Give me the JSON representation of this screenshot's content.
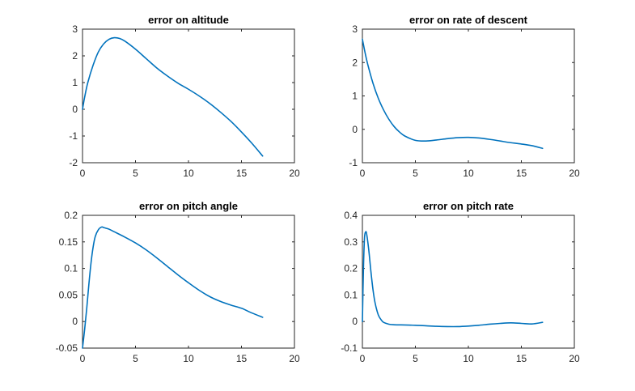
{
  "figure": {
    "background": "#ffffff",
    "line_color": "#0072BD"
  },
  "chart_data": [
    {
      "type": "line",
      "title": "error on altitude",
      "xlabel": "",
      "ylabel": "",
      "xlim": [
        0,
        20
      ],
      "ylim": [
        -2,
        3
      ],
      "xticks": [
        "0",
        "5",
        "10",
        "15",
        "20"
      ],
      "yticks": [
        "-2",
        "-1",
        "0",
        "1",
        "2",
        "3"
      ],
      "grid": true,
      "series": [
        {
          "x": [
            0,
            0.2,
            0.5,
            1,
            1.5,
            2,
            2.5,
            3,
            3.5,
            4,
            5,
            6,
            7,
            8,
            9,
            10,
            11,
            12,
            13,
            14,
            15,
            16,
            17
          ],
          "y": [
            0.0,
            0.45,
            1.0,
            1.65,
            2.15,
            2.45,
            2.62,
            2.68,
            2.65,
            2.55,
            2.25,
            1.9,
            1.55,
            1.25,
            0.98,
            0.75,
            0.5,
            0.22,
            -0.1,
            -0.45,
            -0.85,
            -1.28,
            -1.75
          ]
        }
      ]
    },
    {
      "type": "line",
      "title": "error on rate of descent",
      "xlabel": "",
      "ylabel": "",
      "xlim": [
        0,
        20
      ],
      "ylim": [
        -1,
        3
      ],
      "xticks": [
        "0",
        "5",
        "10",
        "15",
        "20"
      ],
      "yticks": [
        "-1",
        "0",
        "1",
        "2",
        "3"
      ],
      "grid": true,
      "series": [
        {
          "x": [
            0,
            0.25,
            0.5,
            1,
            1.5,
            2,
            2.5,
            3,
            3.5,
            4,
            5,
            6,
            7,
            8,
            9,
            10,
            11,
            12,
            13,
            14,
            15,
            16,
            17
          ],
          "y": [
            2.7,
            2.3,
            1.95,
            1.38,
            0.93,
            0.58,
            0.3,
            0.08,
            -0.08,
            -0.2,
            -0.33,
            -0.35,
            -0.32,
            -0.28,
            -0.25,
            -0.24,
            -0.26,
            -0.3,
            -0.35,
            -0.4,
            -0.44,
            -0.49,
            -0.57
          ]
        }
      ]
    },
    {
      "type": "line",
      "title": "error on pitch angle",
      "xlabel": "",
      "ylabel": "",
      "xlim": [
        0,
        20
      ],
      "ylim": [
        -0.05,
        0.2
      ],
      "xticks": [
        "0",
        "5",
        "10",
        "15",
        "20"
      ],
      "yticks": [
        "-0.05",
        "0",
        "0.05",
        "0.1",
        "0.15",
        "0.2"
      ],
      "grid": true,
      "series": [
        {
          "x": [
            0,
            0.2,
            0.4,
            0.6,
            0.8,
            1,
            1.2,
            1.5,
            1.8,
            2,
            2.5,
            3,
            4,
            5,
            6,
            7,
            8,
            9,
            10,
            11,
            12,
            13,
            14,
            15,
            16,
            17
          ],
          "y": [
            -0.05,
            -0.015,
            0.025,
            0.07,
            0.11,
            0.14,
            0.16,
            0.173,
            0.178,
            0.177,
            0.174,
            0.169,
            0.159,
            0.148,
            0.135,
            0.12,
            0.104,
            0.088,
            0.073,
            0.059,
            0.047,
            0.038,
            0.031,
            0.025,
            0.016,
            0.008
          ]
        }
      ]
    },
    {
      "type": "line",
      "title": "error on pitch rate",
      "xlabel": "",
      "ylabel": "",
      "xlim": [
        0,
        20
      ],
      "ylim": [
        -0.1,
        0.4
      ],
      "xticks": [
        "0",
        "5",
        "10",
        "15",
        "20"
      ],
      "yticks": [
        "-0.1",
        "0",
        "0.1",
        "0.2",
        "0.3",
        "0.4"
      ],
      "grid": true,
      "series": [
        {
          "x": [
            0,
            0.1,
            0.2,
            0.3,
            0.4,
            0.6,
            0.8,
            1,
            1.2,
            1.5,
            1.8,
            2,
            2.5,
            3,
            4,
            5,
            6,
            7,
            8,
            9,
            10,
            11,
            12,
            13,
            14,
            15,
            16,
            17
          ],
          "y": [
            0.0,
            0.2,
            0.315,
            0.337,
            0.33,
            0.27,
            0.19,
            0.12,
            0.07,
            0.025,
            0.005,
            -0.003,
            -0.01,
            -0.012,
            -0.013,
            -0.014,
            -0.016,
            -0.018,
            -0.019,
            -0.019,
            -0.017,
            -0.014,
            -0.01,
            -0.007,
            -0.005,
            -0.007,
            -0.009,
            -0.003
          ]
        }
      ]
    }
  ]
}
